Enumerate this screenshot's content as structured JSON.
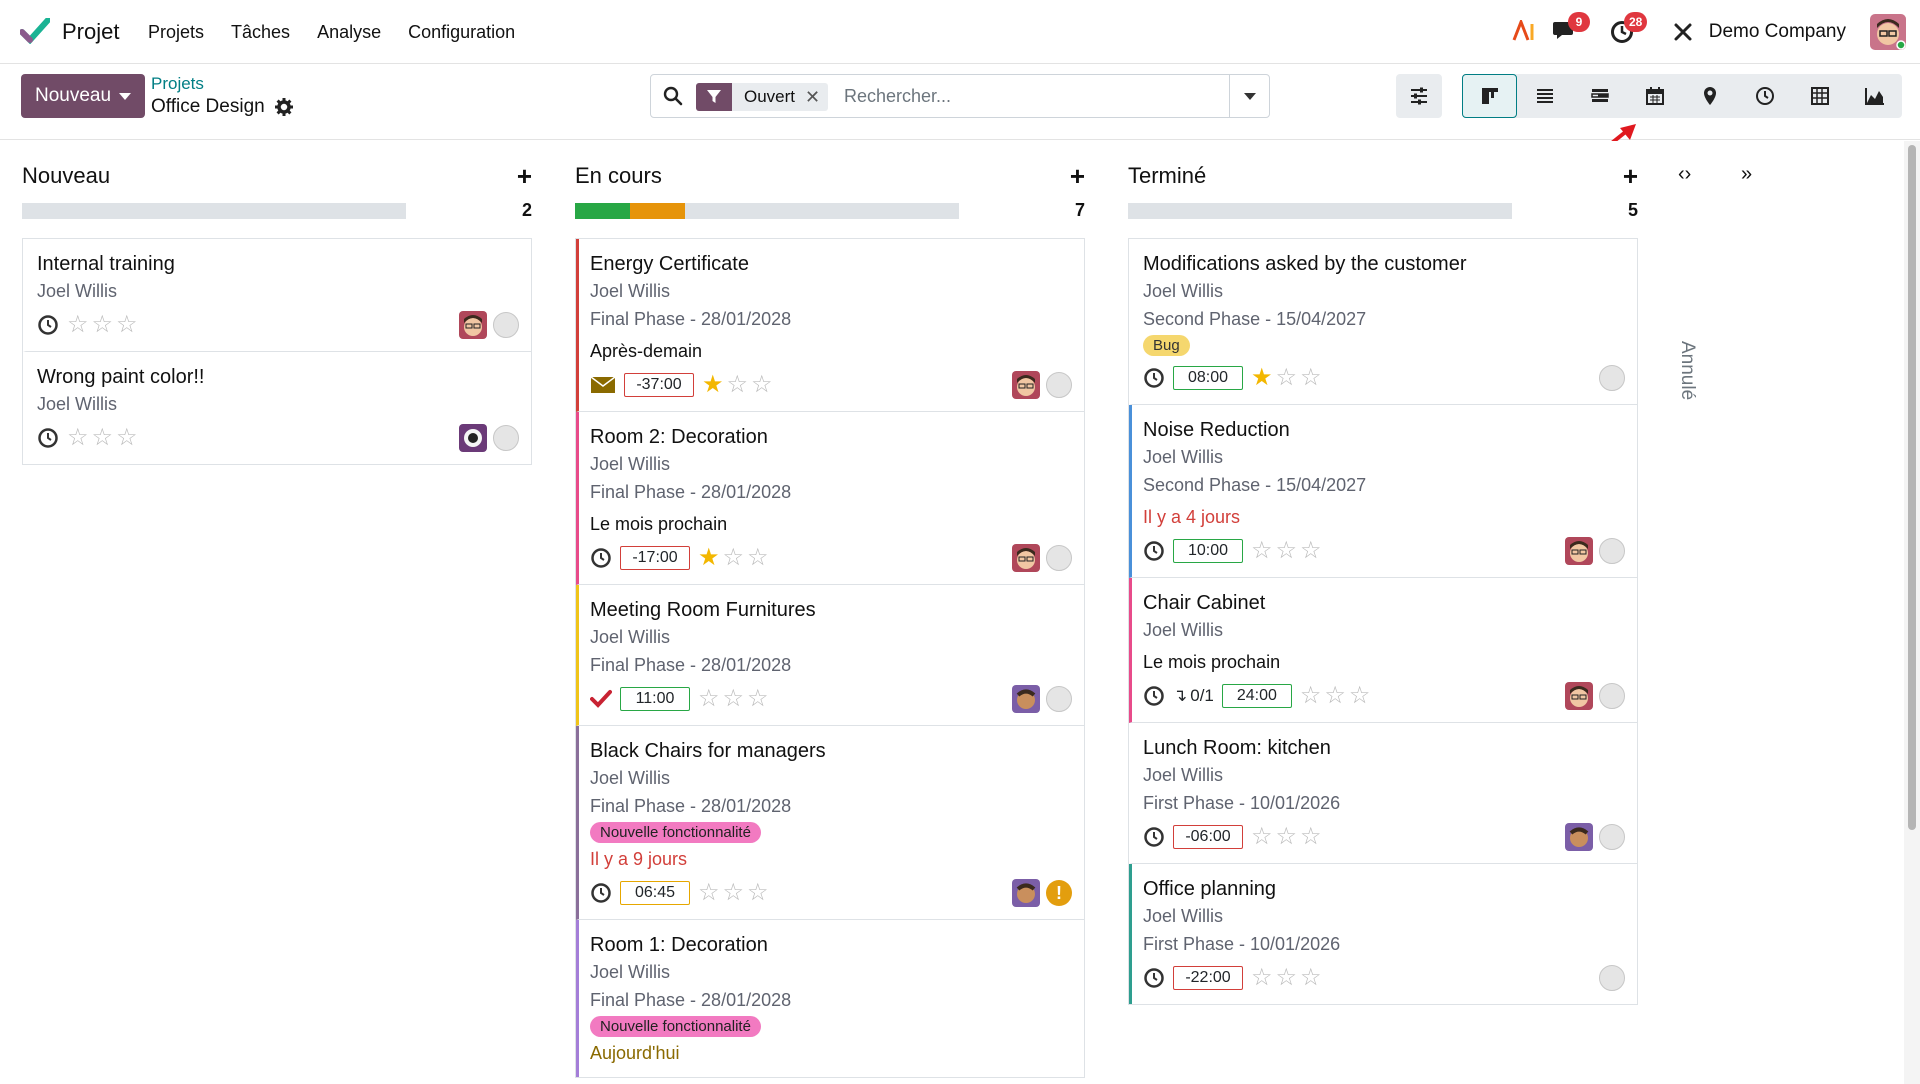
{
  "navbar": {
    "app_name": "Projet",
    "menu": [
      "Projets",
      "Tâches",
      "Analyse",
      "Configuration"
    ],
    "messages_count": "9",
    "activities_count": "28",
    "company": "Demo Company"
  },
  "control_panel": {
    "new_label": "Nouveau",
    "breadcrumb_parent": "Projets",
    "breadcrumb_current": "Office Design",
    "search": {
      "facet": "Ouvert",
      "placeholder": "Rechercher..."
    }
  },
  "columns": [
    {
      "title": "Nouveau",
      "count": "2",
      "progress": [],
      "cards": [
        {
          "title": "Internal training",
          "assignee": "Joel Willis",
          "stars": 0
        },
        {
          "title": "Wrong paint color!!",
          "assignee": "Joel Willis",
          "stars": 0
        }
      ]
    },
    {
      "title": "En cours",
      "count": "7",
      "progress": [
        {
          "color": "#28a745",
          "fraction": 0.143
        },
        {
          "color": "#e6940a",
          "fraction": 0.143
        }
      ],
      "cards": [
        {
          "title": "Energy Certificate",
          "assignee": "Joel Willis",
          "milestone": "Final Phase - 28/01/2028",
          "deadline": "Après-demain",
          "hours": "-37:00",
          "stars": 1
        },
        {
          "title": "Room 2: Decoration",
          "assignee": "Joel Willis",
          "milestone": "Final Phase - 28/01/2028",
          "deadline": "Le mois prochain",
          "hours": "-17:00",
          "stars": 1
        },
        {
          "title": "Meeting Room Furnitures",
          "assignee": "Joel Willis",
          "milestone": "Final Phase - 28/01/2028",
          "hours": "11:00",
          "stars": 0
        },
        {
          "title": "Black Chairs for managers",
          "assignee": "Joel Willis",
          "milestone": "Final Phase - 28/01/2028",
          "tag": "Nouvelle fonctionnalité",
          "deadline": "Il y a 9 jours",
          "hours": "06:45",
          "stars": 0
        },
        {
          "title": "Room 1: Decoration",
          "assignee": "Joel Willis",
          "milestone": "Final Phase - 28/01/2028",
          "tag": "Nouvelle fonctionnalité",
          "deadline": "Aujourd'hui"
        }
      ]
    },
    {
      "title": "Terminé",
      "count": "5",
      "progress": [],
      "cards": [
        {
          "title": "Modifications asked by the customer",
          "assignee": "Joel Willis",
          "milestone": "Second Phase - 15/04/2027",
          "tag": "Bug",
          "hours": "08:00",
          "stars": 1
        },
        {
          "title": "Noise Reduction",
          "assignee": "Joel Willis",
          "milestone": "Second Phase - 15/04/2027",
          "deadline": "Il y a 4 jours",
          "hours": "10:00",
          "stars": 0
        },
        {
          "title": "Chair Cabinet",
          "assignee": "Joel Willis",
          "deadline": "Le mois prochain",
          "subtasks": "0/1",
          "hours": "24:00",
          "stars": 0
        },
        {
          "title": "Lunch Room: kitchen",
          "assignee": "Joel Willis",
          "milestone": "First Phase - 10/01/2026",
          "hours": "-06:00",
          "stars": 0
        },
        {
          "title": "Office planning",
          "assignee": "Joel Willis",
          "milestone": "First Phase - 10/01/2026",
          "hours": "-22:00",
          "stars": 0
        }
      ]
    }
  ],
  "folded_column": {
    "title": "Annulé"
  },
  "colors": {
    "brand": "#714b67",
    "link": "#017e84",
    "danger": "#d23f3a",
    "success": "#28a745",
    "warning": "#e6940a"
  }
}
